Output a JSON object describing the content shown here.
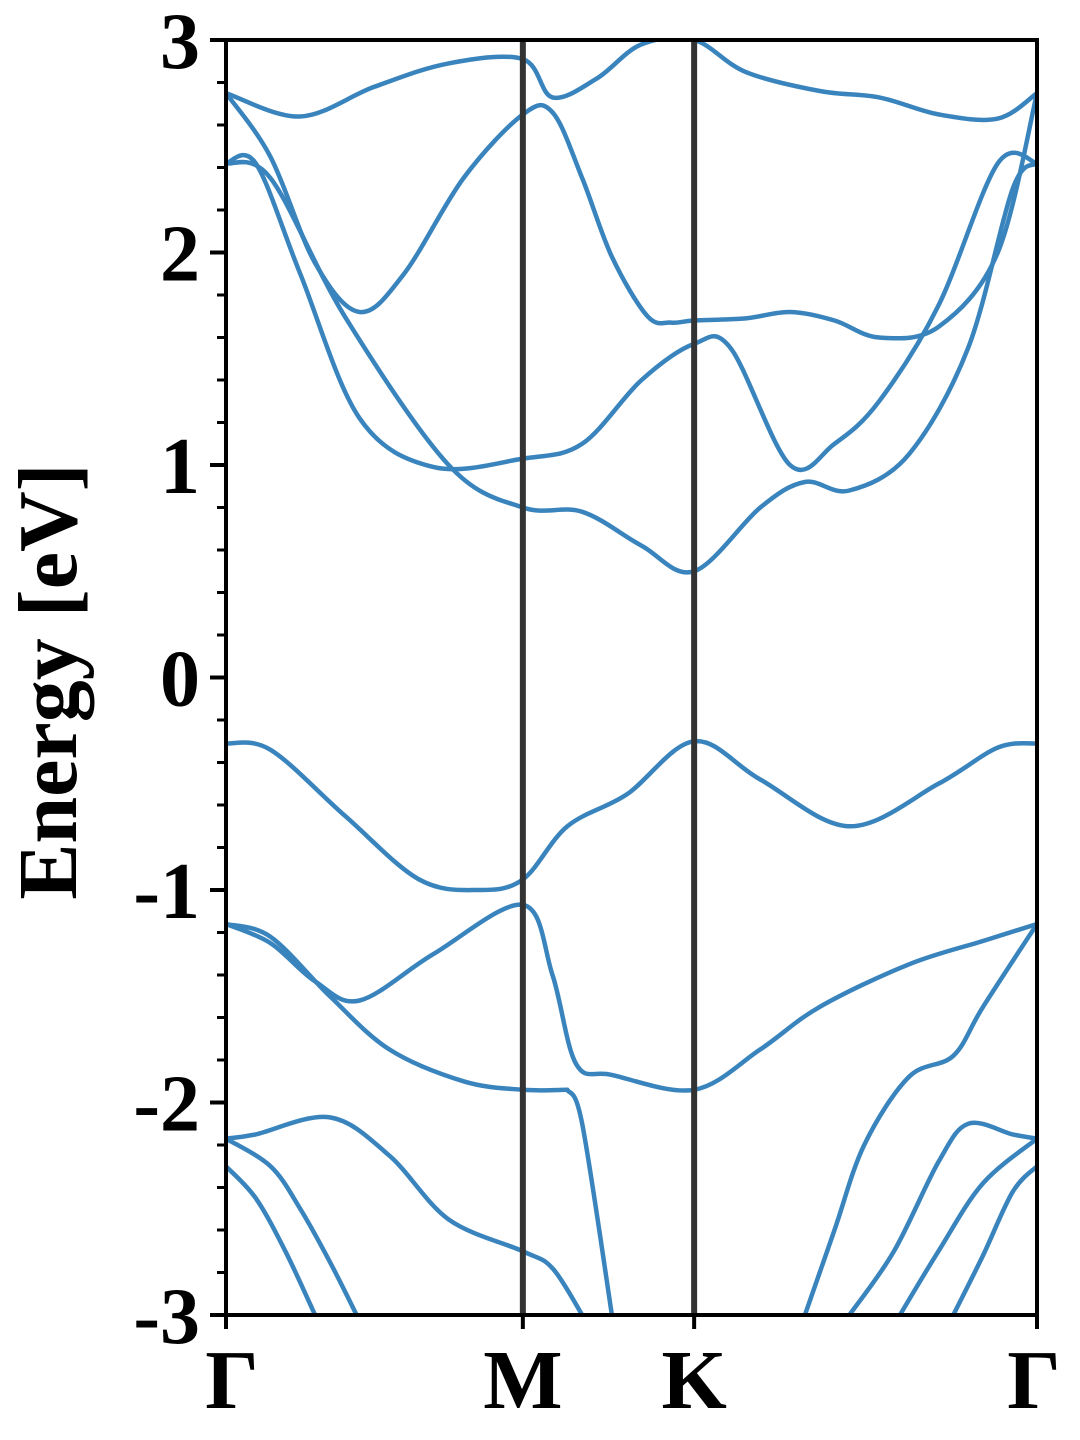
{
  "chart_data": {
    "type": "line",
    "title": "",
    "xlabel": "",
    "ylabel": "Energy [eV]",
    "ylim": [
      -3,
      3
    ],
    "y_ticks": [
      3,
      2,
      1,
      0,
      -1,
      -2,
      -3
    ],
    "y_tick_labels": [
      "3",
      "2",
      "1",
      "0",
      "-1",
      "-2",
      "-3"
    ],
    "x_ticks": [
      {
        "label": "Γ",
        "k": 0.0
      },
      {
        "label": "M",
        "k": 1.0
      },
      {
        "label": "K",
        "k": 1.577
      },
      {
        "label": "Γ",
        "k": 2.732
      }
    ],
    "grid": false,
    "line_color": "#3a84be",
    "divider_color": "#333333",
    "series": [
      {
        "x": [
          0,
          0.25,
          0.5,
          0.75,
          1.0,
          1.1,
          1.25,
          1.4,
          1.577,
          1.75,
          2.0,
          2.2,
          2.4,
          2.6,
          2.732
        ],
        "y": [
          2.75,
          2.64,
          2.78,
          2.89,
          2.91,
          2.73,
          2.82,
          2.98,
          3.0,
          2.85,
          2.76,
          2.73,
          2.65,
          2.63,
          2.75
        ]
      },
      {
        "x": [
          0,
          0.15,
          0.3,
          0.45,
          0.6,
          0.8,
          1.0,
          1.1,
          1.2,
          1.3,
          1.42,
          1.5,
          1.577,
          1.75,
          1.9,
          2.05,
          2.2,
          2.4,
          2.6,
          2.732
        ],
        "y": [
          2.75,
          2.45,
          1.95,
          1.72,
          1.9,
          2.35,
          2.65,
          2.66,
          2.35,
          1.98,
          1.7,
          1.67,
          1.68,
          1.69,
          1.72,
          1.68,
          1.6,
          1.65,
          2.0,
          2.75
        ]
      },
      {
        "x": [
          0,
          0.1,
          0.25,
          0.45,
          0.7,
          1.0,
          1.2,
          1.4,
          1.577,
          1.7,
          1.9,
          2.05,
          2.2,
          2.4,
          2.6,
          2.732
        ],
        "y": [
          2.42,
          2.42,
          1.9,
          1.22,
          0.99,
          1.03,
          1.1,
          1.4,
          1.57,
          1.55,
          1.0,
          1.1,
          1.3,
          1.75,
          2.42,
          2.42
        ]
      },
      {
        "x": [
          0,
          0.15,
          0.4,
          0.75,
          1.0,
          1.2,
          1.4,
          1.577,
          1.8,
          1.95,
          2.1,
          2.3,
          2.5,
          2.65,
          2.732
        ],
        "y": [
          2.42,
          2.35,
          1.7,
          1.0,
          0.8,
          0.78,
          0.62,
          0.5,
          0.8,
          0.92,
          0.88,
          1.05,
          1.55,
          2.3,
          2.42
        ]
      },
      {
        "x": [
          0,
          0.15,
          0.4,
          0.65,
          0.85,
          1.0,
          1.15,
          1.35,
          1.577,
          1.8,
          2.1,
          2.4,
          2.6,
          2.732
        ],
        "y": [
          -0.31,
          -0.34,
          -0.65,
          -0.95,
          -1.0,
          -0.95,
          -0.7,
          -0.55,
          -0.3,
          -0.48,
          -0.7,
          -0.5,
          -0.33,
          -0.31
        ]
      },
      {
        "x": [
          0,
          0.15,
          0.3,
          0.45,
          0.7,
          1.0,
          1.1,
          1.18,
          1.3,
          1.577,
          1.8,
          2.0,
          2.3,
          2.55,
          2.732
        ],
        "y": [
          -1.16,
          -1.25,
          -1.43,
          -1.52,
          -1.3,
          -1.07,
          -1.4,
          -1.82,
          -1.87,
          -1.94,
          -1.75,
          -1.55,
          -1.35,
          -1.24,
          -1.16
        ]
      },
      {
        "x": [
          0,
          0.15,
          0.35,
          0.55,
          0.8,
          1.0,
          1.15
        ],
        "y": [
          -1.16,
          -1.22,
          -1.5,
          -1.75,
          -1.9,
          -1.94,
          -1.94
        ]
      },
      {
        "x": [
          1.15,
          1.2,
          1.3
        ],
        "y": [
          -1.94,
          -2.1,
          -3.0
        ]
      },
      {
        "x": [
          0,
          0.1,
          0.35,
          0.55,
          0.75,
          1.0,
          1.1,
          1.2
        ],
        "y": [
          -2.17,
          -2.15,
          -2.07,
          -2.25,
          -2.55,
          -2.7,
          -2.78,
          -3.0
        ]
      },
      {
        "x": [
          0,
          0.15,
          0.25,
          0.35,
          0.44
        ],
        "y": [
          -2.17,
          -2.3,
          -2.5,
          -2.75,
          -3.0
        ]
      },
      {
        "x": [
          0,
          0.1,
          0.2,
          0.3
        ],
        "y": [
          -2.3,
          -2.45,
          -2.7,
          -3.0
        ]
      },
      {
        "x": [
          1.95,
          2.05,
          2.15,
          2.3,
          2.45,
          2.55,
          2.732
        ],
        "y": [
          -3.0,
          -2.6,
          -2.2,
          -1.88,
          -1.78,
          -1.55,
          -1.16
        ]
      },
      {
        "x": [
          2.1,
          2.25,
          2.4,
          2.5,
          2.65,
          2.732
        ],
        "y": [
          -3.0,
          -2.7,
          -2.28,
          -2.1,
          -2.15,
          -2.17
        ]
      },
      {
        "x": [
          2.27,
          2.4,
          2.55,
          2.732
        ],
        "y": [
          -3.0,
          -2.7,
          -2.38,
          -2.17
        ]
      },
      {
        "x": [
          2.45,
          2.55,
          2.65,
          2.732
        ],
        "y": [
          -3.0,
          -2.72,
          -2.42,
          -2.3
        ]
      }
    ]
  }
}
